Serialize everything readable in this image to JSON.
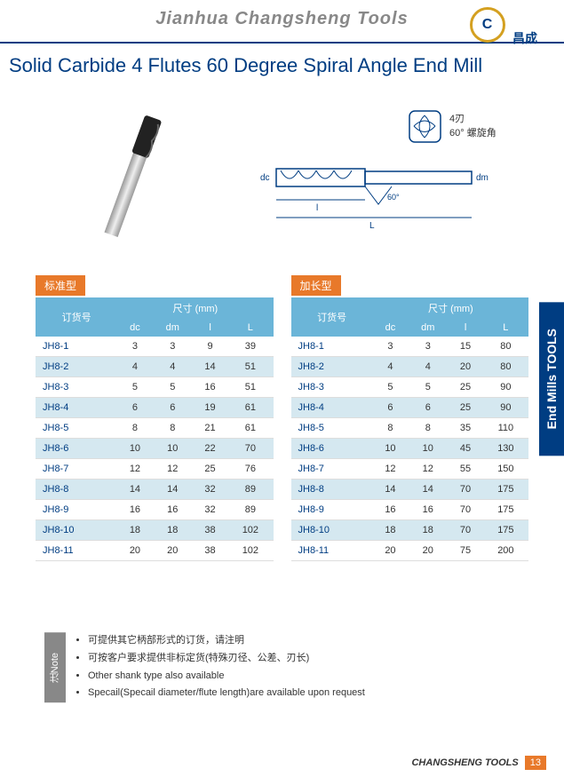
{
  "header": {
    "company_name": "Jianhua Changsheng Tools",
    "logo_text": "昌成"
  },
  "title": "Solid Carbide 4 Flutes 60 Degree Spiral Angle End Mill",
  "diagram": {
    "flutes_label": "4刃",
    "angle_label": "60° 螺旋角",
    "dc_label": "dc",
    "dm_label": "dm",
    "l_label": "l",
    "L_label": "L",
    "angle": "60°"
  },
  "side_tab": "End Mills TOOLS",
  "table1": {
    "label": "标准型",
    "header": {
      "col1": "订货号",
      "size_unit": "尺寸 (mm)",
      "dc": "dc",
      "dm": "dm",
      "l": "l",
      "L": "L"
    },
    "rows": [
      {
        "pn": "JH8-1",
        "dc": "3",
        "dm": "3",
        "l": "9",
        "L": "39"
      },
      {
        "pn": "JH8-2",
        "dc": "4",
        "dm": "4",
        "l": "14",
        "L": "51"
      },
      {
        "pn": "JH8-3",
        "dc": "5",
        "dm": "5",
        "l": "16",
        "L": "51"
      },
      {
        "pn": "JH8-4",
        "dc": "6",
        "dm": "6",
        "l": "19",
        "L": "61"
      },
      {
        "pn": "JH8-5",
        "dc": "8",
        "dm": "8",
        "l": "21",
        "L": "61"
      },
      {
        "pn": "JH8-6",
        "dc": "10",
        "dm": "10",
        "l": "22",
        "L": "70"
      },
      {
        "pn": "JH8-7",
        "dc": "12",
        "dm": "12",
        "l": "25",
        "L": "76"
      },
      {
        "pn": "JH8-8",
        "dc": "14",
        "dm": "14",
        "l": "32",
        "L": "89"
      },
      {
        "pn": "JH8-9",
        "dc": "16",
        "dm": "16",
        "l": "32",
        "L": "89"
      },
      {
        "pn": "JH8-10",
        "dc": "18",
        "dm": "18",
        "l": "38",
        "L": "102"
      },
      {
        "pn": "JH8-11",
        "dc": "20",
        "dm": "20",
        "l": "38",
        "L": "102"
      }
    ]
  },
  "table2": {
    "label": "加长型",
    "header": {
      "col1": "订货号",
      "size_unit": "尺寸 (mm)",
      "dc": "dc",
      "dm": "dm",
      "l": "l",
      "L": "L"
    },
    "rows": [
      {
        "pn": "JH8-1",
        "dc": "3",
        "dm": "3",
        "l": "15",
        "L": "80"
      },
      {
        "pn": "JH8-2",
        "dc": "4",
        "dm": "4",
        "l": "20",
        "L": "80"
      },
      {
        "pn": "JH8-3",
        "dc": "5",
        "dm": "5",
        "l": "25",
        "L": "90"
      },
      {
        "pn": "JH8-4",
        "dc": "6",
        "dm": "6",
        "l": "25",
        "L": "90"
      },
      {
        "pn": "JH8-5",
        "dc": "8",
        "dm": "8",
        "l": "35",
        "L": "110"
      },
      {
        "pn": "JH8-6",
        "dc": "10",
        "dm": "10",
        "l": "45",
        "L": "130"
      },
      {
        "pn": "JH8-7",
        "dc": "12",
        "dm": "12",
        "l": "55",
        "L": "150"
      },
      {
        "pn": "JH8-8",
        "dc": "14",
        "dm": "14",
        "l": "70",
        "L": "175"
      },
      {
        "pn": "JH8-9",
        "dc": "16",
        "dm": "16",
        "l": "70",
        "L": "175"
      },
      {
        "pn": "JH8-10",
        "dc": "18",
        "dm": "18",
        "l": "70",
        "L": "175"
      },
      {
        "pn": "JH8-11",
        "dc": "20",
        "dm": "20",
        "l": "75",
        "L": "200"
      }
    ]
  },
  "notes": {
    "tab": "注Note",
    "items": [
      "可提供其它柄部形式的订货，请注明",
      "可按客户要求提供非标定货(特殊刃径、公差、刃长)",
      "Other shank type also available",
      "Specail(Specail diameter/flute length)are available upon request"
    ]
  },
  "footer": {
    "text": "CHANGSHENG TOOLS",
    "page": "13"
  },
  "colors": {
    "brand_blue": "#003d82",
    "table_header": "#6bb5d8",
    "orange": "#e8792a",
    "row_even": "#d5e8f0"
  }
}
